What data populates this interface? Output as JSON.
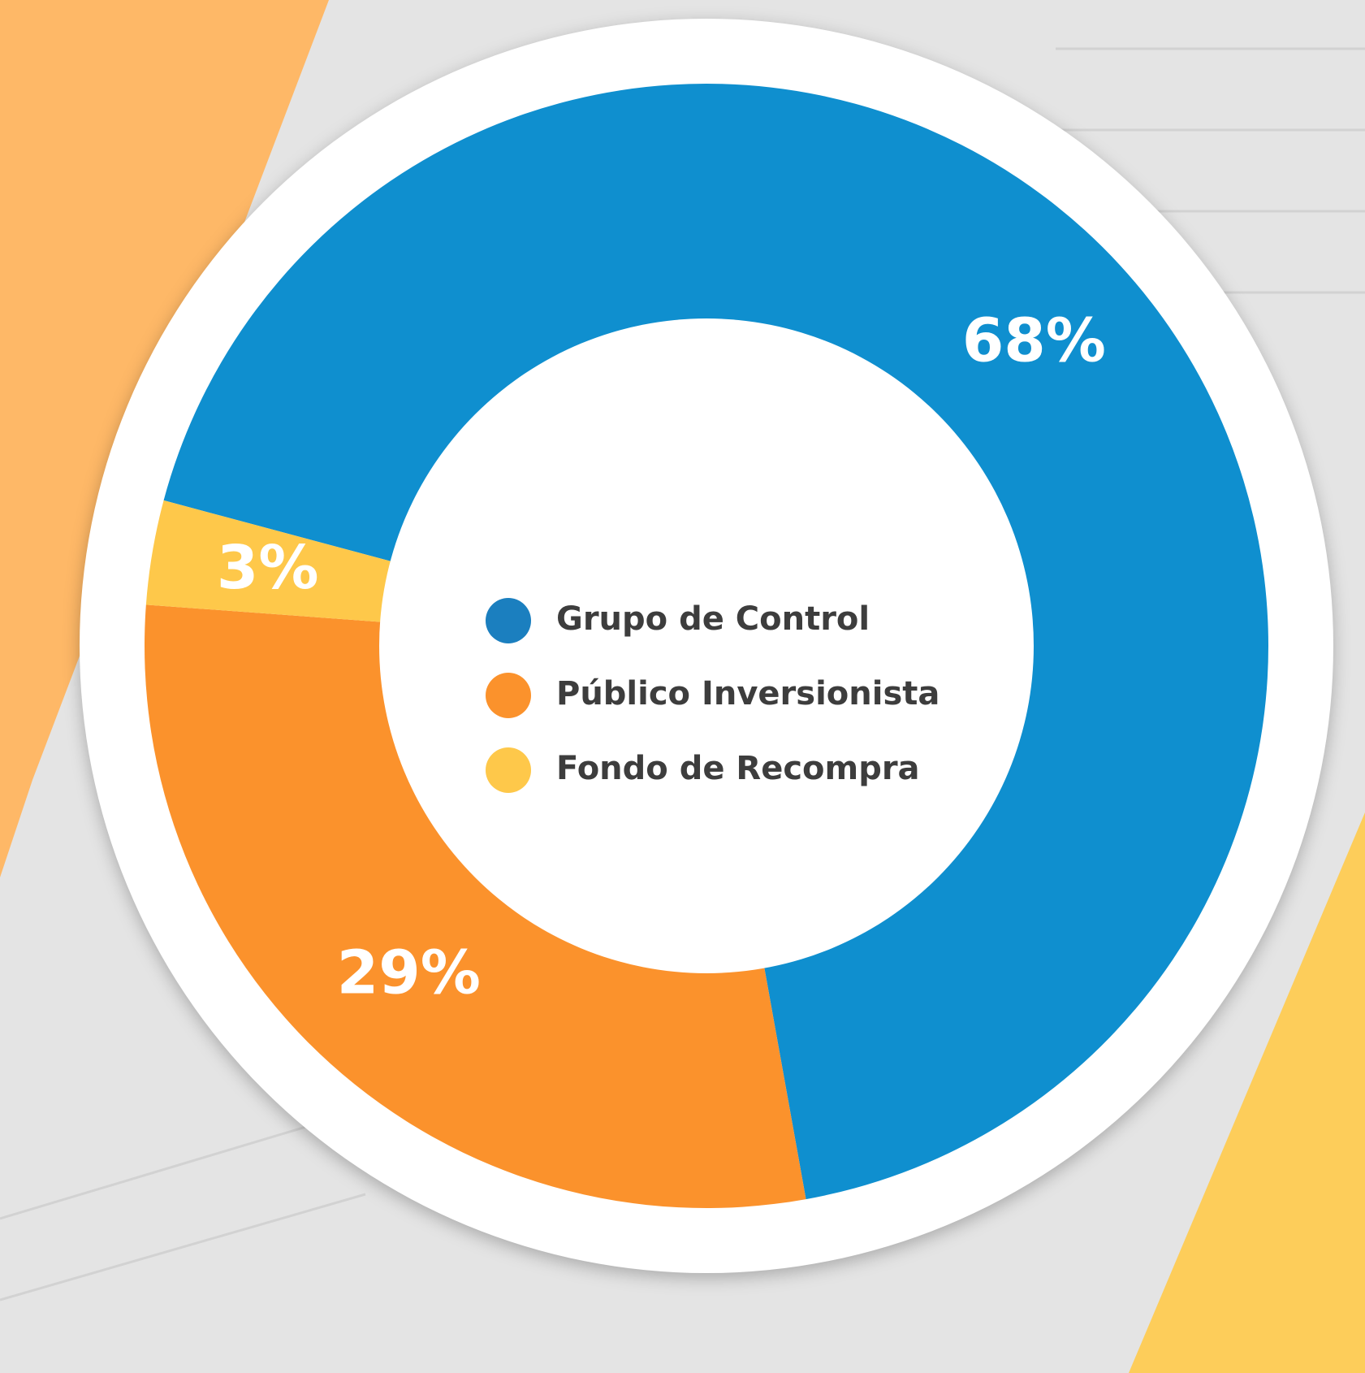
{
  "chart_data": {
    "type": "donut",
    "categories": [
      "Grupo de Control",
      "Público Inversionista",
      "Fondo de Recompra"
    ],
    "values": [
      68,
      29,
      3
    ],
    "value_labels": [
      "68%",
      "29%",
      "3%"
    ],
    "colors": [
      "#0f8fcf",
      "#fb922c",
      "#fec84a"
    ],
    "legend_colors": [
      "#1b7fbf",
      "#fb922c",
      "#fec84a"
    ]
  }
}
